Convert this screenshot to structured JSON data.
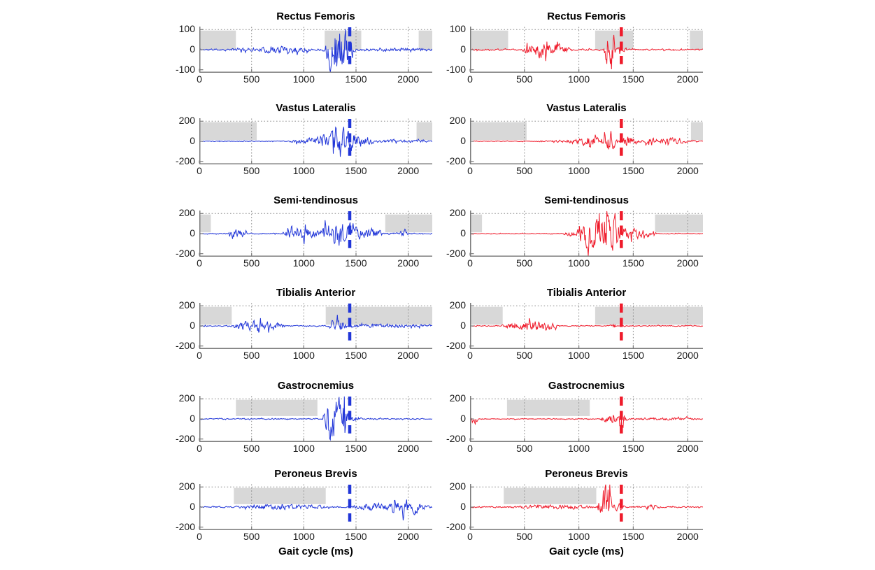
{
  "figure": {
    "background": "#ffffff",
    "xlabel": "Gait cycle (ms)",
    "description": "Raw EMG traces of six lower-limb muscles over the gait cycle; left column in blue, right column in red; gray patches mark activity windows; thick dashed vertical line marks an event near end of cycle"
  },
  "palette": {
    "left_trace": "#2136d8",
    "right_trace": "#ef1b2b",
    "shade_fill": "#d8d8d8",
    "spine": "#7b7b7b",
    "grid": "#8a8a8a",
    "text": "#111111"
  },
  "chart_data": [
    {
      "type": "line",
      "title": "Rectus Femoris",
      "side": "left",
      "color": "#2136d8",
      "xlim": [
        0,
        2230
      ],
      "ylim": [
        -115,
        115
      ],
      "xticks": [
        0,
        500,
        1000,
        1500,
        2000
      ],
      "yticks": [
        -100,
        0,
        100
      ],
      "marker_x": 1440,
      "shaded": [
        [
          0,
          350
        ],
        [
          1200,
          1550
        ],
        [
          2100,
          2230
        ]
      ],
      "shade_y": [
        0,
        95
      ],
      "baseline_noise": 6,
      "activity_bursts": [
        [
          300,
          560,
          6
        ],
        [
          560,
          1060,
          22
        ],
        [
          1190,
          1480,
          160
        ],
        [
          1480,
          2230,
          5
        ]
      ],
      "seed": 11,
      "xlabel": ""
    },
    {
      "type": "line",
      "title": "Rectus Femoris",
      "side": "right",
      "color": "#ef1b2b",
      "xlim": [
        0,
        2140
      ],
      "ylim": [
        -115,
        115
      ],
      "xticks": [
        0,
        500,
        1000,
        1500,
        2000
      ],
      "yticks": [
        -100,
        0,
        100
      ],
      "marker_x": 1390,
      "shaded": [
        [
          0,
          350
        ],
        [
          1150,
          1500
        ],
        [
          2020,
          2140
        ]
      ],
      "shade_y": [
        0,
        95
      ],
      "baseline_noise": 5,
      "activity_bursts": [
        [
          480,
          920,
          48
        ],
        [
          1230,
          1340,
          140
        ],
        [
          1340,
          1450,
          18
        ]
      ],
      "seed": 22,
      "xlabel": ""
    },
    {
      "type": "line",
      "title": "Vastus Lateralis",
      "side": "left",
      "color": "#2136d8",
      "xlim": [
        0,
        2230
      ],
      "ylim": [
        -230,
        230
      ],
      "xticks": [
        0,
        500,
        1000,
        1500,
        2000
      ],
      "yticks": [
        -200,
        0,
        200
      ],
      "marker_x": 1440,
      "shaded": [
        [
          0,
          550
        ],
        [
          2080,
          2230
        ]
      ],
      "shade_y": [
        12,
        190
      ],
      "baseline_noise": 5,
      "activity_bursts": [
        [
          860,
          1090,
          30
        ],
        [
          1040,
          1680,
          110
        ],
        [
          1250,
          1480,
          55
        ],
        [
          1680,
          2230,
          16
        ]
      ],
      "seed": 33,
      "xlabel": ""
    },
    {
      "type": "line",
      "title": "Vastus Lateralis",
      "side": "right",
      "color": "#ef1b2b",
      "xlim": [
        0,
        2140
      ],
      "ylim": [
        -230,
        230
      ],
      "xticks": [
        0,
        500,
        1000,
        1500,
        2000
      ],
      "yticks": [
        -200,
        0,
        200
      ],
      "marker_x": 1390,
      "shaded": [
        [
          0,
          520
        ],
        [
          2030,
          2140
        ]
      ],
      "shade_y": [
        12,
        190
      ],
      "baseline_noise": 4,
      "activity_bursts": [
        [
          600,
          2140,
          18
        ],
        [
          940,
          1260,
          40
        ],
        [
          1230,
          1330,
          140
        ],
        [
          1380,
          1520,
          48
        ],
        [
          1600,
          2000,
          28
        ]
      ],
      "seed": 44,
      "xlabel": ""
    },
    {
      "type": "line",
      "title": "Semi-tendinosus",
      "side": "left",
      "color": "#2136d8",
      "xlim": [
        0,
        2230
      ],
      "ylim": [
        -230,
        230
      ],
      "xticks": [
        0,
        500,
        1000,
        1500,
        2000
      ],
      "yticks": [
        -200,
        0,
        200
      ],
      "marker_x": 1440,
      "shaded": [
        [
          0,
          110
        ],
        [
          1780,
          2230
        ]
      ],
      "shade_y": [
        12,
        190
      ],
      "baseline_noise": 7,
      "activity_bursts": [
        [
          270,
          460,
          48
        ],
        [
          790,
          1160,
          70
        ],
        [
          1130,
          1580,
          170
        ],
        [
          1560,
          1760,
          70
        ],
        [
          1880,
          2010,
          35
        ]
      ],
      "seed": 55,
      "xlabel": ""
    },
    {
      "type": "line",
      "title": "Semi-tendinosus",
      "side": "right",
      "color": "#ef1b2b",
      "xlim": [
        0,
        2140
      ],
      "ylim": [
        -230,
        230
      ],
      "xticks": [
        0,
        500,
        1000,
        1500,
        2000
      ],
      "yticks": [
        -200,
        0,
        200
      ],
      "marker_x": 1390,
      "shaded": [
        [
          0,
          110
        ],
        [
          1700,
          2140
        ]
      ],
      "shade_y": [
        12,
        190
      ],
      "baseline_noise": 5,
      "activity_bursts": [
        [
          850,
          1720,
          85
        ],
        [
          980,
          1430,
          140
        ]
      ],
      "seed": 66,
      "xlabel": ""
    },
    {
      "type": "line",
      "title": "Tibialis Anterior",
      "side": "left",
      "color": "#2136d8",
      "xlim": [
        0,
        2230
      ],
      "ylim": [
        -230,
        230
      ],
      "xticks": [
        0,
        500,
        1000,
        1500,
        2000
      ],
      "yticks": [
        -200,
        0,
        200
      ],
      "marker_x": 1440,
      "shaded": [
        [
          0,
          310
        ],
        [
          1210,
          2230
        ]
      ],
      "shade_y": [
        12,
        190
      ],
      "baseline_noise": 7,
      "activity_bursts": [
        [
          300,
          830,
          65
        ],
        [
          1240,
          1410,
          100
        ],
        [
          1410,
          2230,
          20
        ]
      ],
      "seed": 77,
      "xlabel": ""
    },
    {
      "type": "line",
      "title": "Tibialis Anterior",
      "side": "right",
      "color": "#ef1b2b",
      "xlim": [
        0,
        2140
      ],
      "ylim": [
        -230,
        230
      ],
      "xticks": [
        0,
        500,
        1000,
        1500,
        2000
      ],
      "yticks": [
        -200,
        0,
        200
      ],
      "marker_x": 1390,
      "shaded": [
        [
          0,
          300
        ],
        [
          1150,
          2140
        ]
      ],
      "shade_y": [
        12,
        190
      ],
      "baseline_noise": 6,
      "activity_bursts": [
        [
          280,
          830,
          60
        ],
        [
          1280,
          1350,
          20
        ]
      ],
      "seed": 88,
      "xlabel": ""
    },
    {
      "type": "line",
      "title": "Gastrocnemius",
      "side": "left",
      "color": "#2136d8",
      "xlim": [
        0,
        2230
      ],
      "ylim": [
        -230,
        230
      ],
      "xticks": [
        0,
        500,
        1000,
        1500,
        2000
      ],
      "yticks": [
        -200,
        0,
        200
      ],
      "marker_x": 1440,
      "shaded": [
        [
          350,
          1130
        ]
      ],
      "shade_y": [
        28,
        190
      ],
      "baseline_noise": 7,
      "activity_bursts": [
        [
          1180,
          1430,
          320
        ],
        [
          1430,
          1560,
          35
        ]
      ],
      "seed": 99,
      "xlabel": ""
    },
    {
      "type": "line",
      "title": "Gastrocnemius",
      "side": "right",
      "color": "#ef1b2b",
      "xlim": [
        0,
        2140
      ],
      "ylim": [
        -230,
        230
      ],
      "xticks": [
        0,
        500,
        1000,
        1500,
        2000
      ],
      "yticks": [
        -200,
        0,
        200
      ],
      "marker_x": 1390,
      "shaded": [
        [
          340,
          1100
        ]
      ],
      "shade_y": [
        28,
        190
      ],
      "baseline_noise": 6,
      "activity_bursts": [
        [
          5,
          70,
          60
        ],
        [
          1190,
          1460,
          45
        ],
        [
          1360,
          1420,
          110
        ],
        [
          1460,
          2140,
          12
        ]
      ],
      "seed": 101,
      "xlabel": ""
    },
    {
      "type": "line",
      "title": "Peroneus Brevis",
      "side": "left",
      "color": "#2136d8",
      "xlim": [
        0,
        2230
      ],
      "ylim": [
        -230,
        230
      ],
      "xticks": [
        0,
        500,
        1000,
        1500,
        2000
      ],
      "yticks": [
        -200,
        0,
        200
      ],
      "marker_x": 1440,
      "shaded": [
        [
          330,
          1210
        ]
      ],
      "shade_y": [
        28,
        190
      ],
      "baseline_noise": 8,
      "activity_bursts": [
        [
          340,
          1260,
          26
        ],
        [
          1450,
          2230,
          38
        ],
        [
          1830,
          2160,
          60
        ]
      ],
      "seed": 111,
      "xlabel": "Gait cycle (ms)"
    },
    {
      "type": "line",
      "title": "Peroneus Brevis",
      "side": "right",
      "color": "#ef1b2b",
      "xlim": [
        0,
        2140
      ],
      "ylim": [
        -230,
        230
      ],
      "xticks": [
        0,
        500,
        1000,
        1500,
        2000
      ],
      "yticks": [
        -200,
        0,
        200
      ],
      "marker_x": 1390,
      "shaded": [
        [
          310,
          1160
        ]
      ],
      "shade_y": [
        28,
        190
      ],
      "baseline_noise": 8,
      "activity_bursts": [
        [
          330,
          1160,
          22
        ],
        [
          1170,
          1310,
          300
        ],
        [
          1300,
          1420,
          50
        ],
        [
          1600,
          1760,
          22
        ]
      ],
      "seed": 121,
      "xlabel": "Gait cycle (ms)"
    }
  ]
}
